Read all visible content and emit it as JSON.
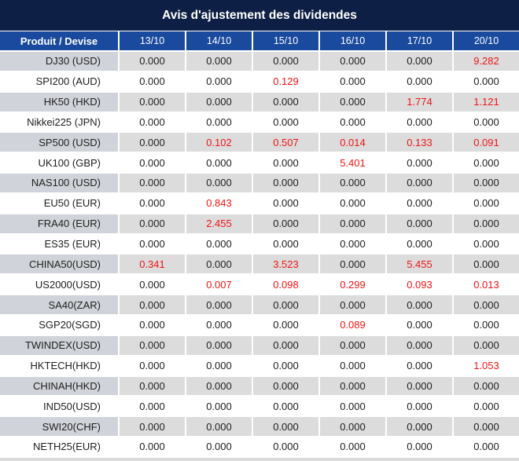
{
  "title": "Avis d'ajustement des dividendes",
  "table": {
    "product_header": "Produit / Devise",
    "date_headers": [
      "13/10",
      "14/10",
      "15/10",
      "16/10",
      "17/10",
      "20/10"
    ],
    "zero_value": "0.000",
    "rows": [
      {
        "product": "DJ30 (USD)",
        "values": [
          "0.000",
          "0.000",
          "0.000",
          "0.000",
          "0.000",
          "9.282"
        ]
      },
      {
        "product": "SPI200 (AUD)",
        "values": [
          "0.000",
          "0.000",
          "0.129",
          "0.000",
          "0.000",
          "0.000"
        ]
      },
      {
        "product": "HK50 (HKD)",
        "values": [
          "0.000",
          "0.000",
          "0.000",
          "0.000",
          "1.774",
          "1.121"
        ]
      },
      {
        "product": "Nikkei225 (JPN)",
        "values": [
          "0.000",
          "0.000",
          "0.000",
          "0.000",
          "0.000",
          "0.000"
        ]
      },
      {
        "product": "SP500 (USD)",
        "values": [
          "0.000",
          "0.102",
          "0.507",
          "0.014",
          "0.133",
          "0.091"
        ]
      },
      {
        "product": "UK100 (GBP)",
        "values": [
          "0.000",
          "0.000",
          "0.000",
          "5.401",
          "0.000",
          "0.000"
        ]
      },
      {
        "product": "NAS100 (USD)",
        "values": [
          "0.000",
          "0.000",
          "0.000",
          "0.000",
          "0.000",
          "0.000"
        ]
      },
      {
        "product": "EU50 (EUR)",
        "values": [
          "0.000",
          "0.843",
          "0.000",
          "0.000",
          "0.000",
          "0.000"
        ]
      },
      {
        "product": "FRA40 (EUR)",
        "values": [
          "0.000",
          "2.455",
          "0.000",
          "0.000",
          "0.000",
          "0.000"
        ]
      },
      {
        "product": "ES35 (EUR)",
        "values": [
          "0.000",
          "0.000",
          "0.000",
          "0.000",
          "0.000",
          "0.000"
        ]
      },
      {
        "product": "CHINA50(USD)",
        "values": [
          "0.341",
          "0.000",
          "3.523",
          "0.000",
          "5.455",
          "0.000"
        ]
      },
      {
        "product": "US2000(USD)",
        "values": [
          "0.000",
          "0.007",
          "0.098",
          "0.299",
          "0.093",
          "0.013"
        ]
      },
      {
        "product": "SA40(ZAR)",
        "values": [
          "0.000",
          "0.000",
          "0.000",
          "0.000",
          "0.000",
          "0.000"
        ]
      },
      {
        "product": "SGP20(SGD)",
        "values": [
          "0.000",
          "0.000",
          "0.000",
          "0.089",
          "0.000",
          "0.000"
        ]
      },
      {
        "product": "TWINDEX(USD)",
        "values": [
          "0.000",
          "0.000",
          "0.000",
          "0.000",
          "0.000",
          "0.000"
        ]
      },
      {
        "product": "HKTECH(HKD)",
        "values": [
          "0.000",
          "0.000",
          "0.000",
          "0.000",
          "0.000",
          "1.053"
        ]
      },
      {
        "product": "CHINAH(HKD)",
        "values": [
          "0.000",
          "0.000",
          "0.000",
          "0.000",
          "0.000",
          "0.000"
        ]
      },
      {
        "product": "IND50(USD)",
        "values": [
          "0.000",
          "0.000",
          "0.000",
          "0.000",
          "0.000",
          "0.000"
        ]
      },
      {
        "product": "SWI20(CHF)",
        "values": [
          "0.000",
          "0.000",
          "0.000",
          "0.000",
          "0.000",
          "0.000"
        ]
      },
      {
        "product": "NETH25(EUR)",
        "values": [
          "0.000",
          "0.000",
          "0.000",
          "0.000",
          "0.000",
          "0.000"
        ]
      }
    ]
  },
  "colors": {
    "title_bg": "#0d1f44",
    "header_bg": "#1a4a9e",
    "header_text": "#ffffff",
    "row_shaded_bg": "#dcdcdc",
    "product_shaded_bg": "#d0d3d9",
    "row_white_bg": "#ffffff",
    "value_zero": "#202020",
    "value_nonzero": "#ee1414",
    "bottom_strip": "#d9d9d9"
  }
}
